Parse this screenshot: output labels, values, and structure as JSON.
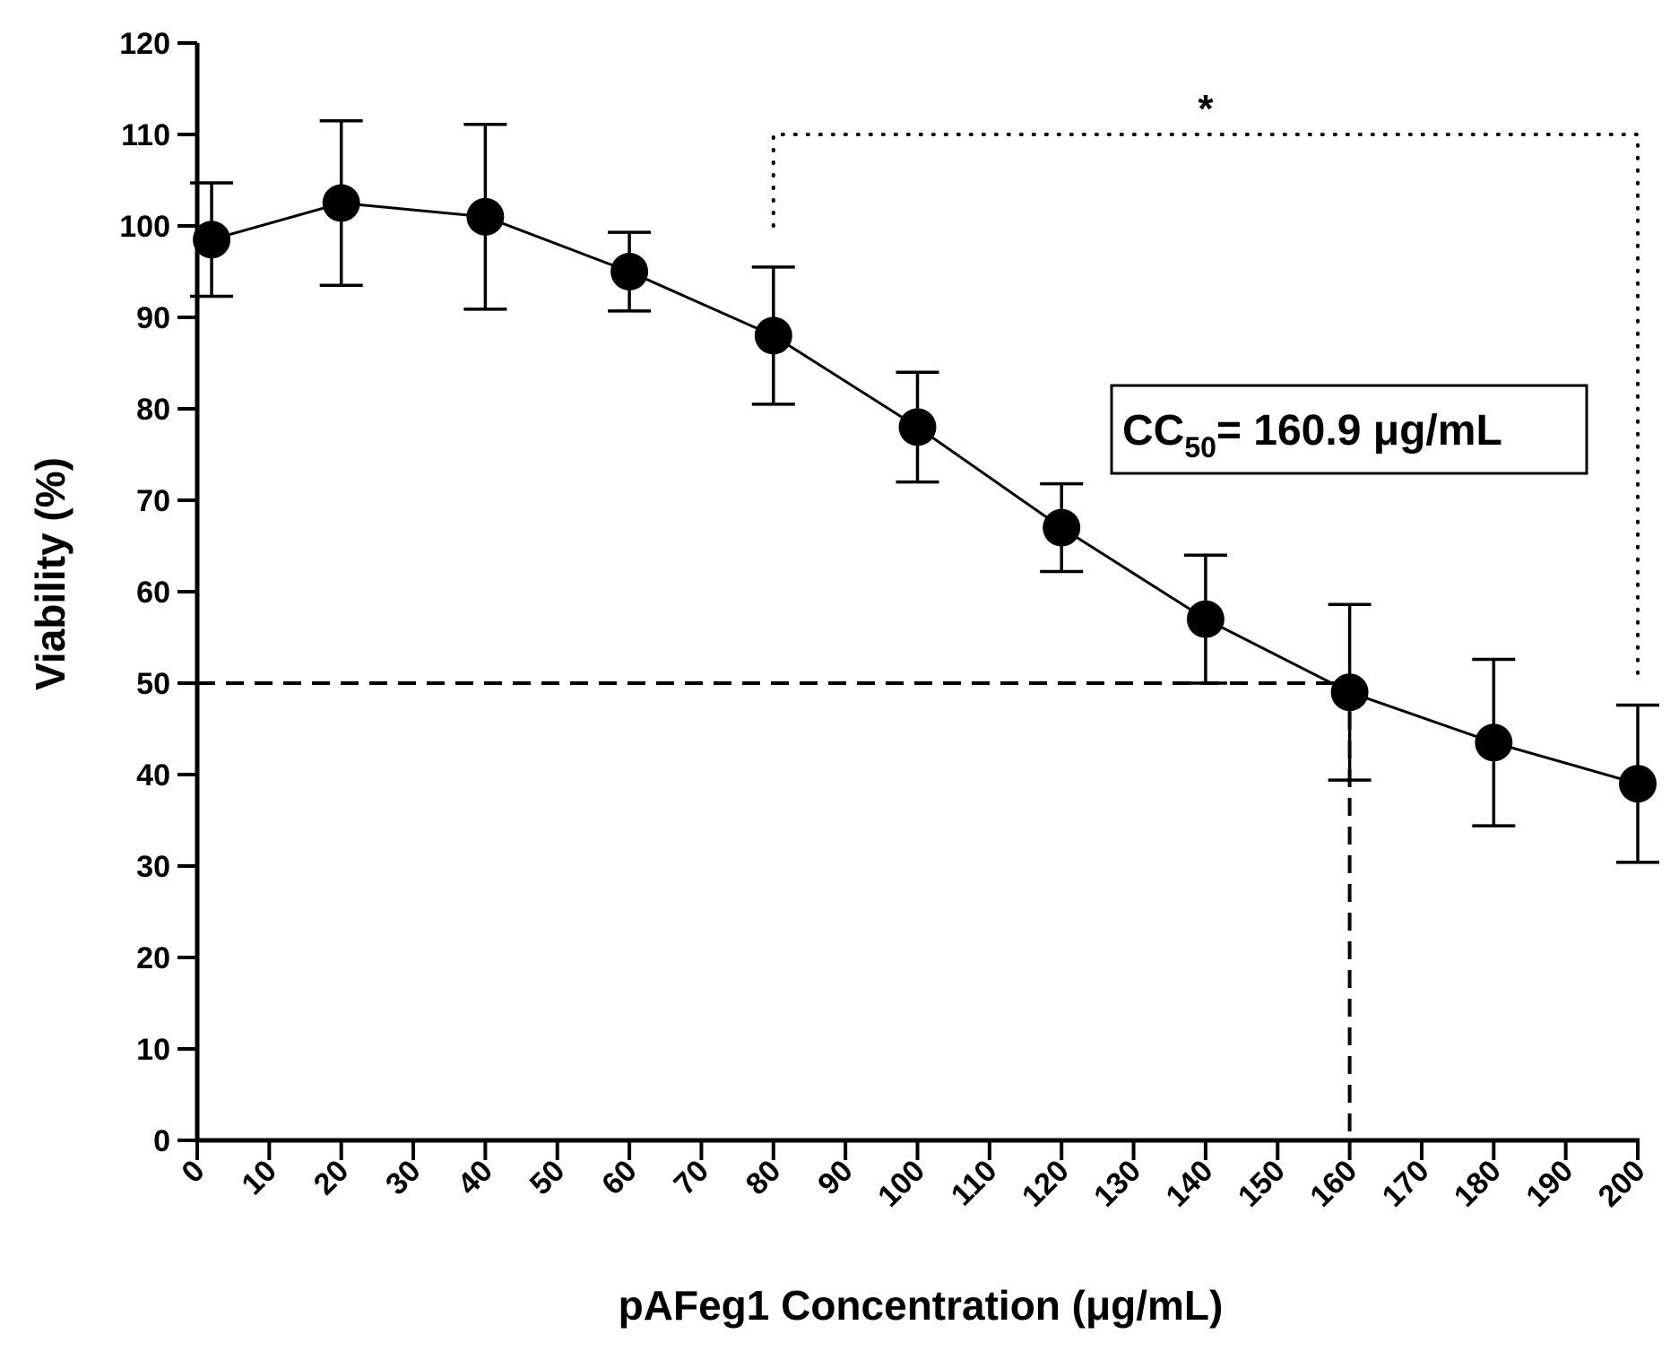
{
  "chart_data": {
    "type": "line",
    "title": "",
    "xlabel": "pAFeg1 Concentration (μg/mL)",
    "ylabel": "Viability (%)",
    "xlim": [
      0,
      200
    ],
    "ylim": [
      0,
      120
    ],
    "xticks": [
      0,
      10,
      20,
      30,
      40,
      50,
      60,
      70,
      80,
      90,
      100,
      110,
      120,
      130,
      140,
      150,
      160,
      170,
      180,
      190,
      200
    ],
    "yticks": [
      0,
      10,
      20,
      30,
      40,
      50,
      60,
      70,
      80,
      90,
      100,
      110,
      120
    ],
    "series": [
      {
        "name": "Viability",
        "x": [
          2,
          20,
          40,
          60,
          80,
          100,
          120,
          140,
          160,
          180,
          200
        ],
        "y": [
          98.5,
          102.5,
          101,
          95,
          88,
          78,
          67,
          57,
          49,
          43.5,
          39
        ],
        "error": [
          6.2,
          9,
          10.1,
          4.3,
          7.5,
          6,
          4.8,
          7,
          9.6,
          9.1,
          8.6
        ]
      }
    ],
    "reference_lines": {
      "cc50_y": 50,
      "cc50_x": 160
    },
    "significance": {
      "label": "*",
      "x_start": 80,
      "x_end": 200,
      "y_bracket": 110,
      "y_start_end": 100,
      "y_end_end": 51
    },
    "annotation": {
      "prefix": "CC",
      "subscript": "50",
      "suffix": "= 160.9 μg/mL"
    }
  }
}
